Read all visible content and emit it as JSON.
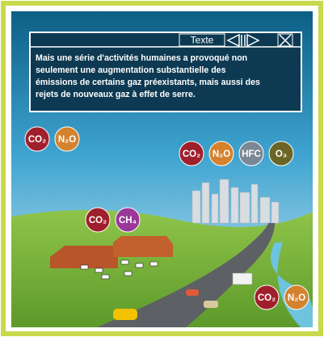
{
  "header": {
    "label": "Texte"
  },
  "body": {
    "lines": [
      "Mais une série d'activités humaines a provoqué non",
      "seulement une augmentation substantielle des",
      "émissions de certains gaz préexistants, mais aussi des",
      "rejets de nouveaux gaz à effet de serre."
    ]
  },
  "bubble_groups": [
    {
      "bubbles": [
        {
          "label": "CO₂",
          "color": "#a01f2c"
        },
        {
          "label": "N₂O",
          "color": "#d4822e"
        }
      ]
    },
    {
      "bubbles": [
        {
          "label": "CO₂",
          "color": "#a01f2c"
        },
        {
          "label": "N₂O",
          "color": "#d4822e"
        },
        {
          "label": "HFC",
          "color": "#7a8794"
        },
        {
          "label": "O₃",
          "color": "#6b6628"
        }
      ]
    },
    {
      "bubbles": [
        {
          "label": "CO₂",
          "color": "#a01f2c"
        },
        {
          "label": "CH₄",
          "color": "#9a3799"
        }
      ]
    },
    {
      "bubbles": [
        {
          "label": "CO₂",
          "color": "#a01f2c"
        },
        {
          "label": "N₂O",
          "color": "#d4822e"
        }
      ]
    }
  ]
}
